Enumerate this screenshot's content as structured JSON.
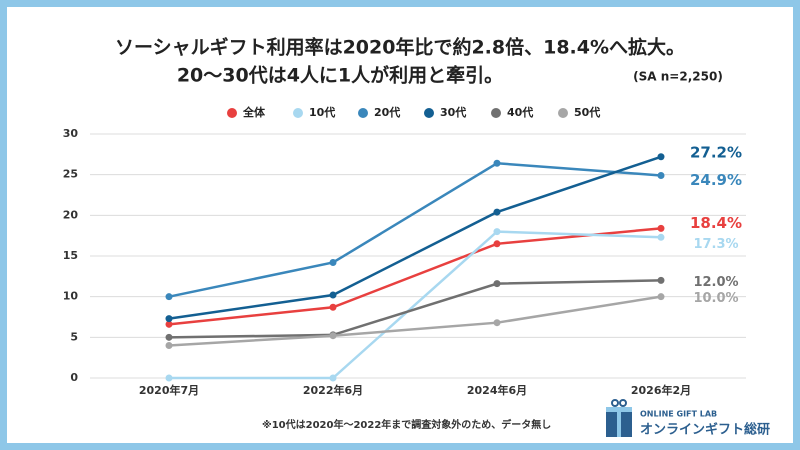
{
  "chart_data": {
    "type": "line",
    "title": [
      "ソーシャルギフト利用率は2020年比で約2.8倍、18.4%へ拡大。",
      "20〜30代は4人に1人が利用と牽引。"
    ],
    "subtitle": "(SA n=2,250)",
    "categories": [
      "2020年7月",
      "2022年6月",
      "2024年6月",
      "2026年2月"
    ],
    "series": [
      {
        "name": "全体",
        "color": "#e8403f",
        "values": [
          6.6,
          8.7,
          16.5,
          18.4
        ],
        "value_labels": [
          null,
          null,
          null,
          "18.4%"
        ]
      },
      {
        "name": "10代",
        "color": "#a8d8f0",
        "values": [
          0,
          0,
          18.0,
          17.3
        ],
        "value_labels": [
          null,
          null,
          null,
          "17.3%"
        ]
      },
      {
        "name": "20代",
        "color": "#3a87bb",
        "values": [
          10.0,
          14.2,
          26.4,
          24.9
        ],
        "value_labels": [
          null,
          null,
          null,
          "24.9%"
        ]
      },
      {
        "name": "30代",
        "color": "#135f92",
        "values": [
          7.3,
          10.2,
          20.4,
          27.2
        ],
        "value_labels": [
          null,
          null,
          null,
          "27.2%"
        ]
      },
      {
        "name": "40代",
        "color": "#707070",
        "values": [
          5.0,
          5.3,
          11.6,
          12.0
        ],
        "value_labels": [
          null,
          null,
          null,
          "12.0%"
        ]
      },
      {
        "name": "50代",
        "color": "#a6a6a6",
        "values": [
          4.0,
          5.2,
          6.8,
          10.0
        ],
        "value_labels": [
          null,
          null,
          null,
          "10.0%"
        ]
      }
    ],
    "ylim": [
      0,
      30
    ],
    "yticks": [
      0,
      5,
      10,
      15,
      20,
      25,
      30
    ],
    "grid": true,
    "footnote": "※10代は2020年〜2022年まで調査対象外のため、データ無し",
    "brand": {
      "en": "ONLINE GIFT LAB",
      "ja": "オンラインギフト総研"
    }
  }
}
